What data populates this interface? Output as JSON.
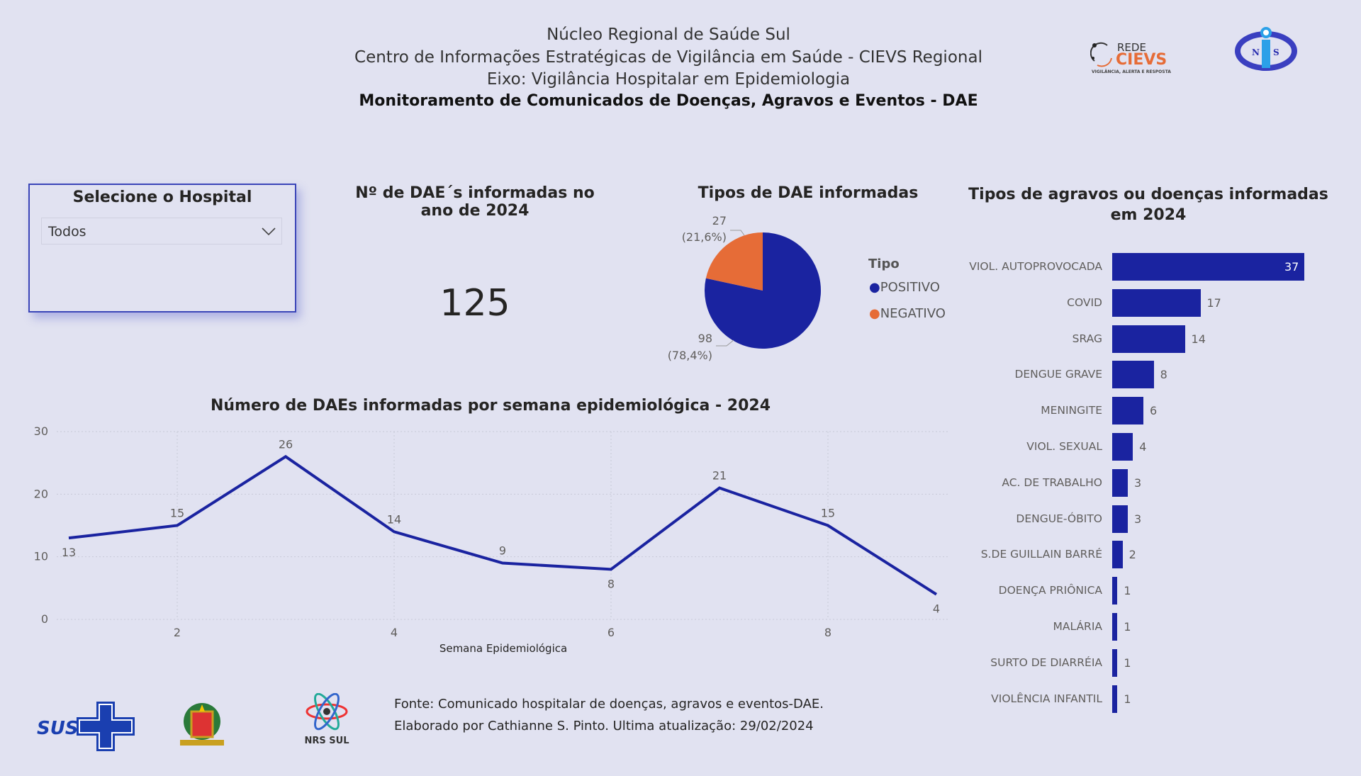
{
  "header": {
    "line1": "Núcleo Regional de Saúde Sul",
    "line2": "Centro de Informações Estratégicas de Vigilância em Saúde - CIEVS Regional",
    "line3": "Eixo: Vigilância Hospitalar em Epidemiologia",
    "line4": "Monitoramento de Comunicados de Doenças, Agravos e Eventos - DAE"
  },
  "logos": {
    "cievs_top": "REDE",
    "cievs_main": "CIEVS",
    "cievs_sub": "VIGILÂNCIA, ALERTA E RESPOSTA",
    "nis": "NIS",
    "sus": "SUS",
    "nrs": "NRS SUL"
  },
  "slicer": {
    "title": "Selecione o Hospital",
    "value": "Todos"
  },
  "kpi": {
    "title": "Nº de DAE´s informadas no ano de 2024",
    "value": "125"
  },
  "colors": {
    "blue": "#1a23a0",
    "orange": "#e66c37"
  },
  "chart_data": [
    {
      "type": "pie",
      "title": "Tipos de DAE informadas",
      "legend_title": "Tipo",
      "slices": [
        {
          "name": "POSITIVO",
          "value": 98,
          "label": "98",
          "pct": "(78,4%)"
        },
        {
          "name": "NEGATIVO",
          "value": 27,
          "label": "27",
          "pct": "(21,6%)"
        }
      ]
    },
    {
      "type": "bar",
      "title": "Tipos de agravos ou doenças informadas em 2024",
      "categories": [
        "VIOL. AUTOPROVOCADA",
        "COVID",
        "SRAG",
        "DENGUE GRAVE",
        "MENINGITE",
        "VIOL. SEXUAL",
        "AC. DE TRABALHO",
        "DENGUE-ÓBITO",
        "S.DE GUILLAIN BARRÉ",
        "DOENÇA PRIÔNICA",
        "MALÁRIA",
        "SURTO DE DIARRÉIA",
        "VIOLÊNCIA INFANTIL"
      ],
      "values": [
        37,
        17,
        14,
        8,
        6,
        4,
        3,
        3,
        2,
        1,
        1,
        1,
        1
      ]
    },
    {
      "type": "line",
      "title": "Número de DAEs informadas por semana epidemiológica - 2024",
      "xlabel": "Semana Epidemiológica",
      "x": [
        1,
        2,
        3,
        4,
        5,
        6,
        7,
        8,
        9
      ],
      "values": [
        13,
        15,
        26,
        14,
        9,
        8,
        21,
        15,
        4
      ],
      "ylim": [
        0,
        30
      ],
      "yticks": [
        "0",
        "10",
        "20",
        "30"
      ],
      "xticks": [
        "2",
        "4",
        "6",
        "8"
      ]
    }
  ],
  "footer": {
    "line1": "Fonte:  Comunicado hospitalar de doenças, agravos e eventos-DAE.",
    "line2": "Elaborado por Cathianne S. Pinto. Ultima atualização: 29/02/2024"
  }
}
